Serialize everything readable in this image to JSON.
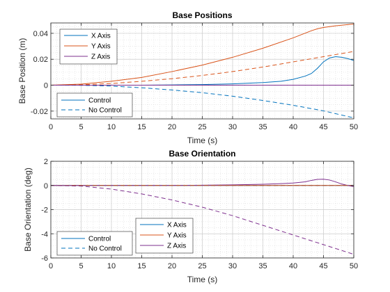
{
  "chart_data": [
    {
      "type": "line",
      "title": "Base Positions",
      "xlabel": "Time (s)",
      "ylabel": "Base Position (m)",
      "xlim": [
        0,
        50
      ],
      "ylim": [
        -0.026,
        0.048
      ],
      "xticks": [
        0,
        5,
        10,
        15,
        20,
        25,
        30,
        35,
        40,
        45,
        50
      ],
      "yticks": [
        -0.02,
        0,
        0.02,
        0.04
      ],
      "ytick_labels": [
        "-0.02",
        "0",
        "0.02",
        "0.04"
      ],
      "grid": true,
      "minor_grid": true,
      "series_legend": {
        "placement": "top-left",
        "entries": [
          "X Axis",
          "Y Axis",
          "Z Axis"
        ]
      },
      "style_legend": {
        "placement": "bottom-left",
        "entries": [
          "Control",
          "No Control"
        ]
      },
      "series": [
        {
          "name": "X Axis",
          "style": "Control",
          "color": "#0072BD",
          "x": [
            0,
            5,
            10,
            15,
            20,
            25,
            30,
            35,
            38,
            40,
            42,
            43,
            44,
            45,
            46,
            47,
            48,
            49,
            50
          ],
          "y": [
            0,
            0,
            0,
            0,
            0.0002,
            0.0005,
            0.001,
            0.002,
            0.003,
            0.0045,
            0.007,
            0.009,
            0.013,
            0.018,
            0.021,
            0.022,
            0.0215,
            0.0205,
            0.019
          ]
        },
        {
          "name": "Y Axis",
          "style": "Control",
          "color": "#D95319",
          "x": [
            0,
            5,
            10,
            15,
            20,
            25,
            30,
            35,
            40,
            43,
            44,
            45,
            47,
            50
          ],
          "y": [
            0,
            0.0008,
            0.003,
            0.006,
            0.0105,
            0.0155,
            0.0215,
            0.0285,
            0.0365,
            0.042,
            0.0435,
            0.0445,
            0.0458,
            0.0472
          ]
        },
        {
          "name": "Z Axis",
          "style": "Control",
          "color": "#7E2F8E",
          "x": [
            0,
            50
          ],
          "y": [
            0,
            0
          ]
        },
        {
          "name": "X Axis",
          "style": "No Control",
          "color": "#0072BD",
          "x": [
            0,
            5,
            10,
            15,
            20,
            25,
            30,
            35,
            40,
            45,
            50
          ],
          "y": [
            0,
            -0.0001,
            -0.0007,
            -0.002,
            -0.0037,
            -0.0058,
            -0.0085,
            -0.0118,
            -0.0155,
            -0.0198,
            -0.0252
          ]
        },
        {
          "name": "Y Axis",
          "style": "No Control",
          "color": "#D95319",
          "x": [
            0,
            5,
            10,
            15,
            20,
            25,
            30,
            35,
            40,
            45,
            50
          ],
          "y": [
            0,
            0.0003,
            0.0013,
            0.003,
            0.005,
            0.0075,
            0.0105,
            0.014,
            0.018,
            0.022,
            0.026
          ]
        },
        {
          "name": "Z Axis",
          "style": "No Control",
          "color": "#7E2F8E",
          "x": [
            0,
            50
          ],
          "y": [
            0,
            0
          ]
        }
      ]
    },
    {
      "type": "line",
      "title": "Base Orientation",
      "xlabel": "Time (s)",
      "ylabel": "Base Orientation (deg)",
      "xlim": [
        0,
        50
      ],
      "ylim": [
        -6,
        2
      ],
      "xticks": [
        0,
        5,
        10,
        15,
        20,
        25,
        30,
        35,
        40,
        45,
        50
      ],
      "yticks": [
        -6,
        -4,
        -2,
        0,
        2
      ],
      "ytick_labels": [
        "-6",
        "-4",
        "-2",
        "0",
        "2"
      ],
      "grid": true,
      "minor_grid": true,
      "series_legend": {
        "placement": "bottom-center",
        "entries": [
          "X Axis",
          "Y Axis",
          "Z Axis"
        ]
      },
      "style_legend": {
        "placement": "bottom-left",
        "entries": [
          "Control",
          "No Control"
        ]
      },
      "series": [
        {
          "name": "X Axis",
          "style": "Control",
          "color": "#0072BD",
          "x": [
            0,
            50
          ],
          "y": [
            0,
            0
          ]
        },
        {
          "name": "Y Axis",
          "style": "Control",
          "color": "#D95319",
          "x": [
            0,
            50
          ],
          "y": [
            0,
            0
          ]
        },
        {
          "name": "Z Axis",
          "style": "Control",
          "color": "#7E2F8E",
          "x": [
            0,
            10,
            20,
            25,
            30,
            35,
            38,
            40,
            42,
            43,
            44,
            45,
            46,
            47,
            48,
            49,
            50
          ],
          "y": [
            0,
            0,
            0,
            0.02,
            0.05,
            0.1,
            0.15,
            0.2,
            0.3,
            0.42,
            0.5,
            0.52,
            0.45,
            0.3,
            0.12,
            0,
            -0.1
          ]
        },
        {
          "name": "X Axis",
          "style": "No Control",
          "color": "#0072BD",
          "x": [
            0,
            50
          ],
          "y": [
            0,
            0
          ]
        },
        {
          "name": "Y Axis",
          "style": "No Control",
          "color": "#D95319",
          "x": [
            0,
            50
          ],
          "y": [
            0,
            0
          ]
        },
        {
          "name": "Z Axis",
          "style": "No Control",
          "color": "#7E2F8E",
          "x": [
            0,
            5,
            10,
            15,
            20,
            25,
            30,
            35,
            40,
            45,
            50
          ],
          "y": [
            0,
            -0.05,
            -0.3,
            -0.7,
            -1.2,
            -1.8,
            -2.5,
            -3.3,
            -4.1,
            -4.9,
            -5.7
          ]
        }
      ]
    }
  ]
}
